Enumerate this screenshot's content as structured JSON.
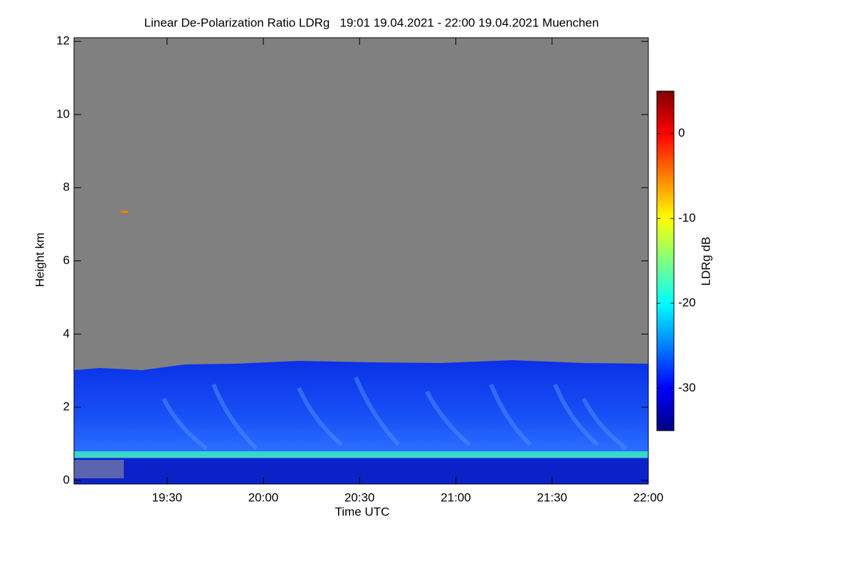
{
  "chart_data": {
    "type": "heatmap",
    "title": "Linear De-Polarization Ratio LDRg   19:01 19.04.2021 - 22:00 19.04.2021 Muenchen",
    "x_label": "Time UTC",
    "y_label": "Height km",
    "xlim": [
      1141,
      1320
    ],
    "xticks": [
      {
        "value": 1170,
        "label": "19:30"
      },
      {
        "value": 1200,
        "label": "20:00"
      },
      {
        "value": 1230,
        "label": "20:30"
      },
      {
        "value": 1260,
        "label": "21:00"
      },
      {
        "value": 1290,
        "label": "21:30"
      },
      {
        "value": 1320,
        "label": "22:00"
      }
    ],
    "ylim": [
      -0.1,
      12.1
    ],
    "yticks": [
      0,
      2,
      4,
      6,
      8,
      10,
      12
    ],
    "colorbar": {
      "label": "LDRg dB",
      "clim": [
        -35,
        5
      ],
      "ticks": [
        0,
        -10,
        -20,
        -30
      ],
      "colormap": [
        "#00007f",
        "#0000ff",
        "#007fff",
        "#00ffff",
        "#7fff7f",
        "#ffff00",
        "#ff7f00",
        "#ff0000",
        "#7f0000"
      ]
    }
  }
}
